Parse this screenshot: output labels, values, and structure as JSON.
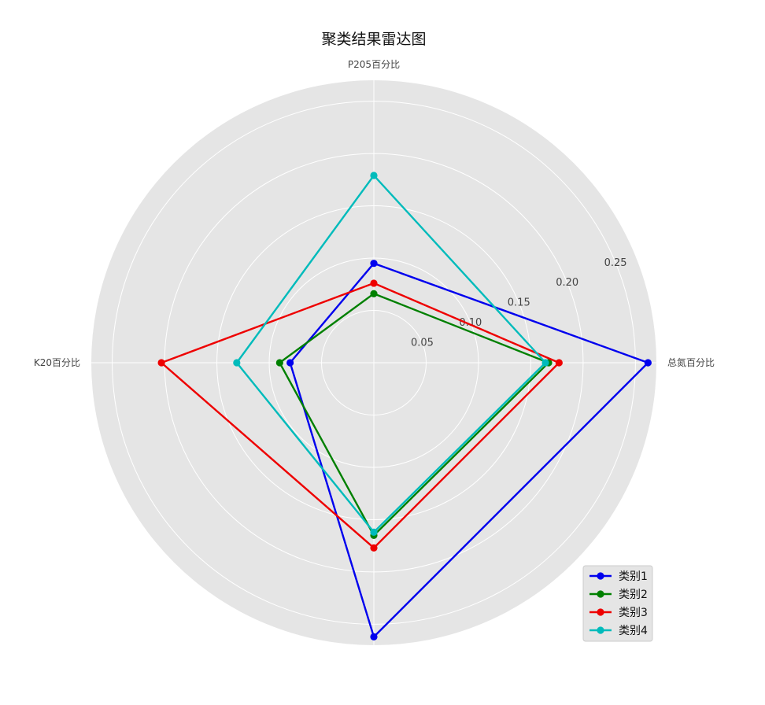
{
  "chart_data": {
    "type": "radar",
    "title": "聚类结果雷达图",
    "axes": [
      "总氮百分比",
      "P205百分比",
      "K20百分比",
      ""
    ],
    "r_ticks": [
      0.05,
      0.1,
      0.15,
      0.2,
      0.25
    ],
    "r_tick_labels": [
      "0.05",
      "0.10",
      "0.15",
      "0.20",
      "0.25"
    ],
    "r_max": 0.27,
    "grid": true,
    "legend_position": "lower-right",
    "series": [
      {
        "name": "类别1",
        "color": "#0000ee",
        "values": [
          0.262,
          0.095,
          0.08,
          0.262
        ]
      },
      {
        "name": "类别2",
        "color": "#008000",
        "values": [
          0.167,
          0.066,
          0.09,
          0.165
        ]
      },
      {
        "name": "类别3",
        "color": "#ee0000",
        "values": [
          0.177,
          0.076,
          0.203,
          0.177
        ]
      },
      {
        "name": "类别4",
        "color": "#00bbbb",
        "values": [
          0.164,
          0.179,
          0.131,
          0.162
        ]
      }
    ]
  }
}
